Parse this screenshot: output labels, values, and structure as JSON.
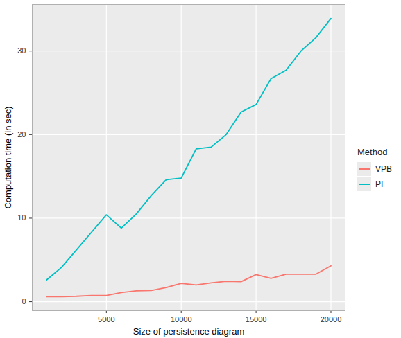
{
  "chart_data": {
    "type": "line",
    "xlabel": "Size of persistence diagram",
    "ylabel": "Computation time (in sec)",
    "x": [
      1000,
      2000,
      3000,
      4000,
      5000,
      6000,
      7000,
      8000,
      9000,
      10000,
      11000,
      12000,
      13000,
      14000,
      15000,
      16000,
      17000,
      18000,
      19000,
      20000
    ],
    "series": [
      {
        "name": "VPB",
        "color": "#F8766D",
        "values": [
          0.6,
          0.6,
          0.65,
          0.75,
          0.75,
          1.1,
          1.3,
          1.35,
          1.7,
          2.2,
          2.0,
          2.25,
          2.45,
          2.4,
          3.25,
          2.8,
          3.3,
          3.3,
          3.3,
          4.3
        ]
      },
      {
        "name": "PI",
        "color": "#00BFC4",
        "values": [
          2.6,
          4.1,
          6.2,
          8.3,
          10.4,
          8.8,
          10.5,
          12.7,
          14.6,
          14.8,
          18.3,
          18.5,
          20.0,
          22.7,
          23.6,
          26.7,
          27.7,
          30.0,
          31.6,
          33.9
        ]
      }
    ],
    "xlim": [
      50,
      20950
    ],
    "ylim": [
      -1.07,
      35.57
    ],
    "xticks": [
      5000,
      10000,
      15000,
      20000
    ],
    "yticks": [
      0,
      10,
      20,
      30
    ],
    "grid": true,
    "legend": "right",
    "legend_title": "Method"
  }
}
